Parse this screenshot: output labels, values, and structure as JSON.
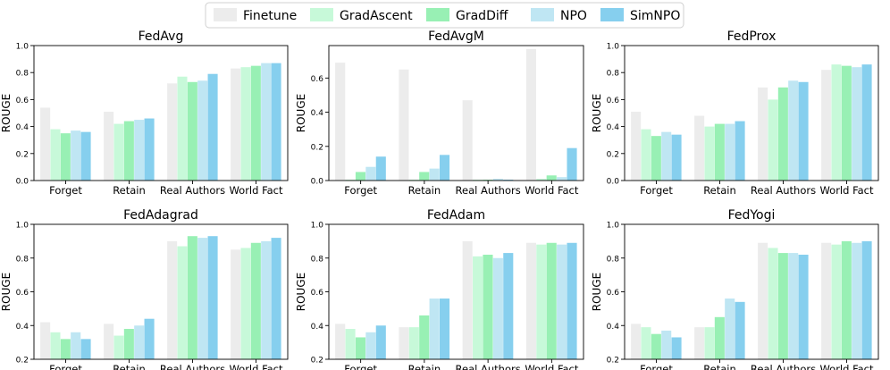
{
  "legend": [
    {
      "label": "Finetune",
      "color": "#ececec"
    },
    {
      "label": "GradAscent",
      "color": "#c7f9d9"
    },
    {
      "label": "GradDiff",
      "color": "#98f0b4"
    },
    {
      "label": "NPO",
      "color": "#bfe6f3"
    },
    {
      "label": "SimNPO",
      "color": "#86cfee"
    }
  ],
  "chart_data": [
    {
      "type": "bar",
      "title": "FedAvg",
      "ylabel": "ROUGE",
      "xlabel": "",
      "categories": [
        "Forget",
        "Retain",
        "Real Authors",
        "World Fact"
      ],
      "ylim": [
        0,
        1.0
      ],
      "yticks": [
        "0.0",
        "0.2",
        "0.4",
        "0.6",
        "0.8",
        "1.0"
      ],
      "series": [
        {
          "name": "Finetune",
          "values": [
            0.54,
            0.51,
            0.72,
            0.83
          ]
        },
        {
          "name": "GradAscent",
          "values": [
            0.38,
            0.42,
            0.77,
            0.84
          ]
        },
        {
          "name": "GradDiff",
          "values": [
            0.35,
            0.44,
            0.73,
            0.85
          ]
        },
        {
          "name": "NPO",
          "values": [
            0.37,
            0.45,
            0.74,
            0.87
          ]
        },
        {
          "name": "SimNPO",
          "values": [
            0.36,
            0.46,
            0.79,
            0.87
          ]
        }
      ]
    },
    {
      "type": "bar",
      "title": "FedAvgM",
      "ylabel": "ROUGE",
      "xlabel": "",
      "categories": [
        "Forget",
        "Retain",
        "Real Authors",
        "World Fact"
      ],
      "ylim": [
        0,
        0.79
      ],
      "yticks": [
        "0.0",
        "0.2",
        "0.4",
        "0.6"
      ],
      "series": [
        {
          "name": "Finetune",
          "values": [
            0.69,
            0.65,
            0.47,
            0.77
          ]
        },
        {
          "name": "GradAscent",
          "values": [
            0.005,
            0.005,
            0.005,
            0.01
          ]
        },
        {
          "name": "GradDiff",
          "values": [
            0.05,
            0.05,
            0.005,
            0.03
          ]
        },
        {
          "name": "NPO",
          "values": [
            0.08,
            0.07,
            0.01,
            0.02
          ]
        },
        {
          "name": "SimNPO",
          "values": [
            0.14,
            0.15,
            0.005,
            0.19
          ]
        }
      ]
    },
    {
      "type": "bar",
      "title": "FedProx",
      "ylabel": "ROUGE",
      "xlabel": "",
      "categories": [
        "Forget",
        "Retain",
        "Real Authors",
        "World Fact"
      ],
      "ylim": [
        0,
        1.0
      ],
      "yticks": [
        "0.0",
        "0.2",
        "0.4",
        "0.6",
        "0.8",
        "1.0"
      ],
      "series": [
        {
          "name": "Finetune",
          "values": [
            0.51,
            0.48,
            0.69,
            0.82
          ]
        },
        {
          "name": "GradAscent",
          "values": [
            0.38,
            0.4,
            0.6,
            0.86
          ]
        },
        {
          "name": "GradDiff",
          "values": [
            0.33,
            0.42,
            0.69,
            0.85
          ]
        },
        {
          "name": "NPO",
          "values": [
            0.36,
            0.42,
            0.74,
            0.84
          ]
        },
        {
          "name": "SimNPO",
          "values": [
            0.34,
            0.44,
            0.73,
            0.86
          ]
        }
      ]
    },
    {
      "type": "bar",
      "title": "FedAdagrad",
      "ylabel": "ROUGE",
      "xlabel": "",
      "categories": [
        "Forget",
        "Retain",
        "Real Authors",
        "World Fact"
      ],
      "ylim": [
        0.2,
        1.0
      ],
      "yticks": [
        "0.2",
        "0.4",
        "0.6",
        "0.8",
        "1.0"
      ],
      "series": [
        {
          "name": "Finetune",
          "values": [
            0.42,
            0.41,
            0.9,
            0.85
          ]
        },
        {
          "name": "GradAscent",
          "values": [
            0.36,
            0.34,
            0.87,
            0.86
          ]
        },
        {
          "name": "GradDiff",
          "values": [
            0.32,
            0.38,
            0.93,
            0.89
          ]
        },
        {
          "name": "NPO",
          "values": [
            0.36,
            0.4,
            0.92,
            0.9
          ]
        },
        {
          "name": "SimNPO",
          "values": [
            0.32,
            0.44,
            0.93,
            0.92
          ]
        }
      ]
    },
    {
      "type": "bar",
      "title": "FedAdam",
      "ylabel": "ROUGE",
      "xlabel": "",
      "categories": [
        "Forget",
        "Retain",
        "Real Authors",
        "World Fact"
      ],
      "ylim": [
        0.2,
        1.0
      ],
      "yticks": [
        "0.2",
        "0.4",
        "0.6",
        "0.8",
        "1.0"
      ],
      "series": [
        {
          "name": "Finetune",
          "values": [
            0.41,
            0.39,
            0.9,
            0.89
          ]
        },
        {
          "name": "GradAscent",
          "values": [
            0.38,
            0.39,
            0.81,
            0.88
          ]
        },
        {
          "name": "GradDiff",
          "values": [
            0.33,
            0.46,
            0.82,
            0.89
          ]
        },
        {
          "name": "NPO",
          "values": [
            0.36,
            0.56,
            0.8,
            0.88
          ]
        },
        {
          "name": "SimNPO",
          "values": [
            0.4,
            0.56,
            0.83,
            0.89
          ]
        }
      ]
    },
    {
      "type": "bar",
      "title": "FedYogi",
      "ylabel": "ROUGE",
      "xlabel": "",
      "categories": [
        "Forget",
        "Retain",
        "Real Authors",
        "World Fact"
      ],
      "ylim": [
        0.2,
        1.0
      ],
      "yticks": [
        "0.2",
        "0.4",
        "0.6",
        "0.8",
        "1.0"
      ],
      "series": [
        {
          "name": "Finetune",
          "values": [
            0.41,
            0.39,
            0.89,
            0.89
          ]
        },
        {
          "name": "GradAscent",
          "values": [
            0.39,
            0.39,
            0.86,
            0.88
          ]
        },
        {
          "name": "GradDiff",
          "values": [
            0.35,
            0.45,
            0.83,
            0.9
          ]
        },
        {
          "name": "NPO",
          "values": [
            0.37,
            0.56,
            0.83,
            0.89
          ]
        },
        {
          "name": "SimNPO",
          "values": [
            0.33,
            0.54,
            0.82,
            0.9
          ]
        }
      ]
    }
  ]
}
